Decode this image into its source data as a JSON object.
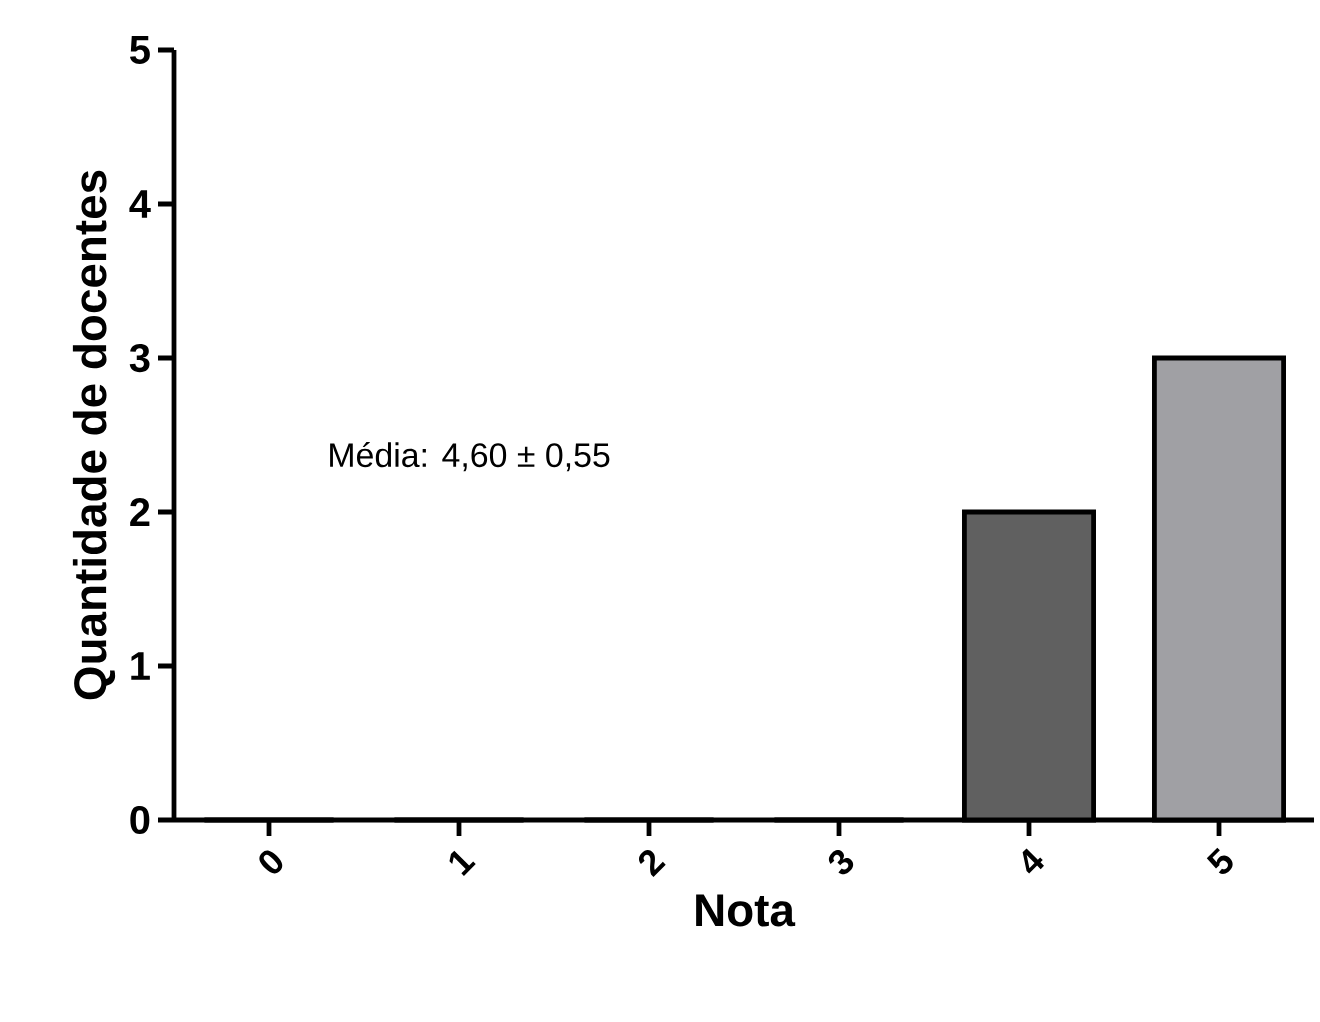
{
  "chart_data": {
    "type": "bar",
    "xlabel": "Nota",
    "ylabel": "Quantidade de docentes",
    "categories": [
      "0",
      "1",
      "2",
      "3",
      "4",
      "5"
    ],
    "values": [
      0,
      0,
      0,
      0,
      2,
      3
    ],
    "colors": [
      "#606060",
      "#606060",
      "#606060",
      "#606060",
      "#606060",
      "#a0a0a4"
    ],
    "ylim": [
      0,
      5
    ],
    "yticks": [
      0,
      1,
      2,
      3,
      4,
      5
    ],
    "annotations": [
      "Média: 4,60 ± 0,55"
    ]
  }
}
